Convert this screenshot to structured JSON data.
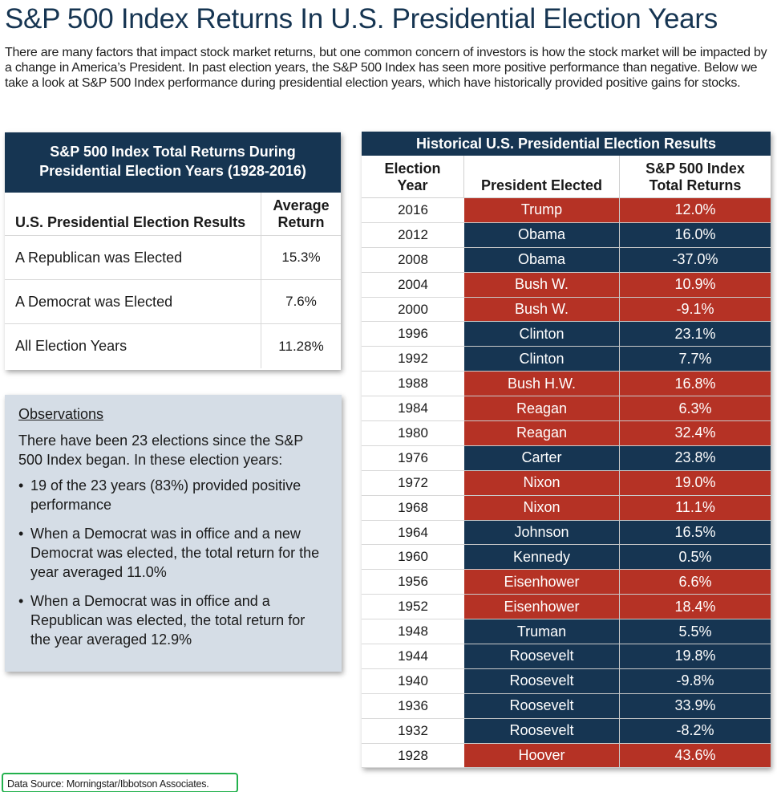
{
  "title": "S&P 500 Index Returns In U.S. Presidential Election Years",
  "intro": "There are many factors that impact stock market returns, but one common concern of investors is how the stock market will be impacted by a change in America’s President. In past election years, the S&P 500 Index has seen more positive performance than negative. Below we take a look at S&P 500 Index performance during presidential election years, which have historically provided positive gains for stocks.",
  "summary": {
    "title_line1": "S&P 500 Index Total Returns During",
    "title_line2": "Presidential Election Years (1928-2016)",
    "col1_header": "U.S. Presidential Election Results",
    "col2_header_line1": "Average",
    "col2_header_line2": "Return",
    "rows": [
      {
        "label": "A Republican was Elected",
        "value": "15.3%"
      },
      {
        "label": "A Democrat was Elected",
        "value": "7.6%"
      },
      {
        "label": "All Election Years",
        "value": "11.28%"
      }
    ]
  },
  "observations": {
    "title": "Observations",
    "lead": "There have been 23 elections since the S&P 500 Index began. In these election years:",
    "bullet": "•",
    "items": [
      "19 of the 23 years (83%) provided positive performance",
      "When a Democrat was in office and a new Democrat was elected, the total return for the year averaged 11.0%",
      "When a Democrat was in office and a Republican was elected, the total return for the year averaged 12.9%"
    ]
  },
  "history": {
    "title": "Historical U.S. Presidential Election Results",
    "col_year_line1": "Election",
    "col_year_line2": "Year",
    "col_president": "President Elected",
    "col_return_line1": "S&P 500 Index",
    "col_return_line2": "Total Returns",
    "colors": {
      "republican": "#b53225",
      "democrat": "#163552"
    },
    "rows": [
      {
        "year": "2016",
        "president": "Trump",
        "return": "12.0%",
        "party": "rep"
      },
      {
        "year": "2012",
        "president": "Obama",
        "return": "16.0%",
        "party": "dem"
      },
      {
        "year": "2008",
        "president": "Obama",
        "return": "-37.0%",
        "party": "dem"
      },
      {
        "year": "2004",
        "president": "Bush W.",
        "return": "10.9%",
        "party": "rep"
      },
      {
        "year": "2000",
        "president": "Bush W.",
        "return": "-9.1%",
        "party": "rep"
      },
      {
        "year": "1996",
        "president": "Clinton",
        "return": "23.1%",
        "party": "dem"
      },
      {
        "year": "1992",
        "president": "Clinton",
        "return": "7.7%",
        "party": "dem"
      },
      {
        "year": "1988",
        "president": "Bush H.W.",
        "return": "16.8%",
        "party": "rep"
      },
      {
        "year": "1984",
        "president": "Reagan",
        "return": "6.3%",
        "party": "rep"
      },
      {
        "year": "1980",
        "president": "Reagan",
        "return": "32.4%",
        "party": "rep"
      },
      {
        "year": "1976",
        "president": "Carter",
        "return": "23.8%",
        "party": "dem"
      },
      {
        "year": "1972",
        "president": "Nixon",
        "return": "19.0%",
        "party": "rep"
      },
      {
        "year": "1968",
        "president": "Nixon",
        "return": "11.1%",
        "party": "rep"
      },
      {
        "year": "1964",
        "president": "Johnson",
        "return": "16.5%",
        "party": "dem"
      },
      {
        "year": "1960",
        "president": "Kennedy",
        "return": "0.5%",
        "party": "dem"
      },
      {
        "year": "1956",
        "president": "Eisenhower",
        "return": "6.6%",
        "party": "rep"
      },
      {
        "year": "1952",
        "president": "Eisenhower",
        "return": "18.4%",
        "party": "rep"
      },
      {
        "year": "1948",
        "president": "Truman",
        "return": "5.5%",
        "party": "dem"
      },
      {
        "year": "1944",
        "president": "Roosevelt",
        "return": "19.8%",
        "party": "dem"
      },
      {
        "year": "1940",
        "president": "Roosevelt",
        "return": "-9.8%",
        "party": "dem"
      },
      {
        "year": "1936",
        "president": "Roosevelt",
        "return": "33.9%",
        "party": "dem"
      },
      {
        "year": "1932",
        "president": "Roosevelt",
        "return": "-8.2%",
        "party": "dem"
      },
      {
        "year": "1928",
        "president": "Hoover",
        "return": "43.6%",
        "party": "rep"
      }
    ]
  },
  "source": "Data Source: Morningstar/Ibbotson Associates."
}
